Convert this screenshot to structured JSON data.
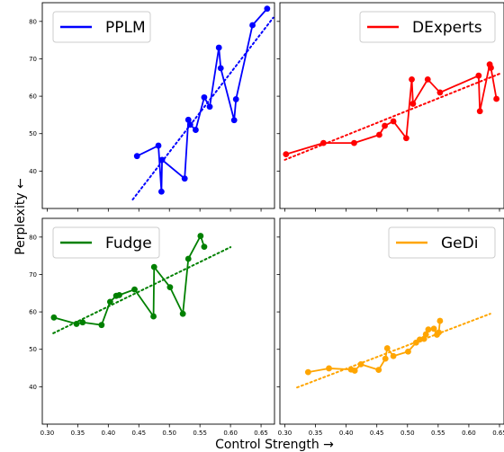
{
  "xlabel": "Control Strength →",
  "ylabel": "Perplexity ←",
  "x_ticks": [
    "0.30",
    "0.35",
    "0.40",
    "0.45",
    "0.50",
    "0.55",
    "0.60",
    "0.65"
  ],
  "x_tick_values": [
    0.3,
    0.35,
    0.4,
    0.45,
    0.5,
    0.55,
    0.6,
    0.65
  ],
  "y_ticks": [
    "40",
    "50",
    "60",
    "70",
    "80"
  ],
  "y_tick_values": [
    40,
    50,
    60,
    70,
    80
  ],
  "chart_data": {
    "type": "line",
    "layout": "2x2 small multiples, shared axes",
    "xlabel": "Control Strength →",
    "ylabel": "Perplexity ←",
    "xlim": [
      0.292,
      0.672
    ],
    "ylim": [
      30,
      85
    ],
    "grid": false,
    "legend_position": "top",
    "panels": [
      {
        "name": "PPLM",
        "color": "#0000ff",
        "points": [
          [
            0.447,
            44
          ],
          [
            0.482,
            46.8
          ],
          [
            0.487,
            34.5
          ],
          [
            0.488,
            43
          ],
          [
            0.525,
            38
          ],
          [
            0.531,
            53.7
          ],
          [
            0.534,
            52.4
          ],
          [
            0.543,
            51
          ],
          [
            0.557,
            59.7
          ],
          [
            0.566,
            57.2
          ],
          [
            0.581,
            73
          ],
          [
            0.584,
            67.5
          ],
          [
            0.606,
            53.6
          ],
          [
            0.609,
            59.2
          ],
          [
            0.636,
            79
          ],
          [
            0.66,
            83.4
          ]
        ],
        "trend": [
          [
            0.44,
            32.4
          ],
          [
            0.67,
            81
          ]
        ]
      },
      {
        "name": "DExperts",
        "color": "#ff0000",
        "points": [
          [
            0.302,
            44.5
          ],
          [
            0.363,
            47.5
          ],
          [
            0.413,
            47.5
          ],
          [
            0.454,
            49.7
          ],
          [
            0.463,
            52.1
          ],
          [
            0.477,
            53.3
          ],
          [
            0.498,
            48.8
          ],
          [
            0.507,
            64.5
          ],
          [
            0.509,
            58
          ],
          [
            0.533,
            64.5
          ],
          [
            0.553,
            61
          ],
          [
            0.616,
            65.5
          ],
          [
            0.618,
            56
          ],
          [
            0.634,
            68.5
          ],
          [
            0.636,
            67.6
          ],
          [
            0.645,
            59.3
          ]
        ],
        "trend": [
          [
            0.3,
            43
          ],
          [
            0.65,
            66
          ]
        ]
      },
      {
        "name": "Fudge",
        "color": "#008000",
        "points": [
          [
            0.311,
            58.5
          ],
          [
            0.348,
            56.8
          ],
          [
            0.358,
            57.2
          ],
          [
            0.389,
            56.5
          ],
          [
            0.403,
            62.7
          ],
          [
            0.413,
            64.3
          ],
          [
            0.418,
            64.5
          ],
          [
            0.443,
            66
          ],
          [
            0.474,
            58.8
          ],
          [
            0.475,
            72
          ],
          [
            0.501,
            66.6
          ],
          [
            0.522,
            59.5
          ],
          [
            0.531,
            74.2
          ],
          [
            0.551,
            80.3
          ],
          [
            0.557,
            77.4
          ]
        ],
        "trend": [
          [
            0.31,
            54.3
          ],
          [
            0.6,
            77.3
          ]
        ]
      },
      {
        "name": "GeDi",
        "color": "#ffa500",
        "points": [
          [
            0.338,
            43.9
          ],
          [
            0.372,
            44.9
          ],
          [
            0.408,
            44.6
          ],
          [
            0.414,
            44.3
          ],
          [
            0.424,
            46
          ],
          [
            0.453,
            44.5
          ],
          [
            0.464,
            47.5
          ],
          [
            0.467,
            50.3
          ],
          [
            0.477,
            48.2
          ],
          [
            0.501,
            49.4
          ],
          [
            0.514,
            51.8
          ],
          [
            0.52,
            52.6
          ],
          [
            0.527,
            52.8
          ],
          [
            0.53,
            54
          ],
          [
            0.534,
            55.3
          ],
          [
            0.543,
            55.5
          ],
          [
            0.548,
            53.9
          ],
          [
            0.551,
            54.5
          ],
          [
            0.553,
            57.6
          ]
        ],
        "trend": [
          [
            0.32,
            39.8
          ],
          [
            0.635,
            59.5
          ]
        ]
      }
    ]
  }
}
